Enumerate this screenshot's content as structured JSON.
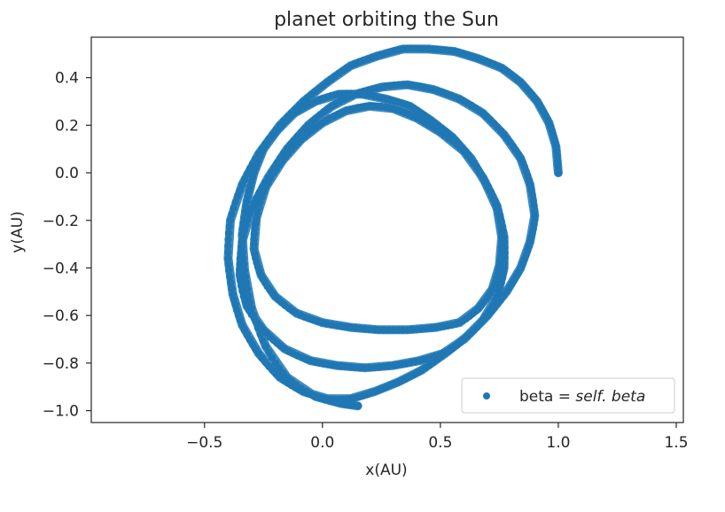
{
  "chart_data": {
    "type": "scatter",
    "title": "planet orbiting the Sun",
    "xlabel": "x(AU)",
    "ylabel": "y(AU)",
    "xlim": [
      -0.98,
      1.53
    ],
    "ylim": [
      -1.05,
      0.57
    ],
    "xticks": [
      -0.5,
      0.0,
      0.5,
      1.0,
      1.5
    ],
    "xtick_labels": [
      "−0.5",
      "0.0",
      "0.5",
      "1.0",
      "1.5"
    ],
    "yticks": [
      0.4,
      0.2,
      0.0,
      -0.2,
      -0.4,
      -0.6,
      -0.8,
      -1.0
    ],
    "ytick_labels": [
      "0.4",
      "0.2",
      "0.0",
      "−0.2",
      "−0.4",
      "−0.6",
      "−0.8",
      "−1.0"
    ],
    "grid": false,
    "legend": {
      "position": "lower-right",
      "label_prefix": "beta = ",
      "label_italic": "self. beta"
    },
    "colors": {
      "series": "#1f77b4",
      "axes": "#262626"
    },
    "series": [
      {
        "marker": "circle",
        "points": [
          [
            1.0,
            0.0
          ],
          [
            0.99,
            0.11
          ],
          [
            0.96,
            0.21
          ],
          [
            0.91,
            0.3
          ],
          [
            0.84,
            0.38
          ],
          [
            0.76,
            0.44
          ],
          [
            0.66,
            0.48
          ],
          [
            0.56,
            0.51
          ],
          [
            0.45,
            0.52
          ],
          [
            0.34,
            0.52
          ],
          [
            0.23,
            0.49
          ],
          [
            0.12,
            0.45
          ],
          [
            0.02,
            0.38
          ],
          [
            -0.08,
            0.3
          ],
          [
            -0.18,
            0.2
          ],
          [
            -0.27,
            0.08
          ],
          [
            -0.34,
            -0.05
          ],
          [
            -0.39,
            -0.2
          ],
          [
            -0.4,
            -0.36
          ],
          [
            -0.38,
            -0.51
          ],
          [
            -0.34,
            -0.64
          ],
          [
            -0.27,
            -0.76
          ],
          [
            -0.18,
            -0.86
          ],
          [
            -0.08,
            -0.92
          ],
          [
            0.02,
            -0.95
          ],
          [
            0.12,
            -0.95
          ],
          [
            0.22,
            -0.92
          ],
          [
            0.32,
            -0.88
          ],
          [
            0.42,
            -0.83
          ],
          [
            0.52,
            -0.76
          ],
          [
            0.61,
            -0.69
          ],
          [
            0.7,
            -0.6
          ],
          [
            0.78,
            -0.5
          ],
          [
            0.84,
            -0.4
          ],
          [
            0.88,
            -0.29
          ],
          [
            0.9,
            -0.18
          ],
          [
            0.88,
            -0.05
          ],
          [
            0.84,
            0.06
          ],
          [
            0.77,
            0.16
          ],
          [
            0.68,
            0.25
          ],
          [
            0.58,
            0.31
          ],
          [
            0.47,
            0.35
          ],
          [
            0.36,
            0.37
          ],
          [
            0.25,
            0.36
          ],
          [
            0.14,
            0.33
          ],
          [
            0.04,
            0.28
          ],
          [
            -0.06,
            0.2
          ],
          [
            -0.15,
            0.1
          ],
          [
            -0.23,
            -0.02
          ],
          [
            -0.3,
            -0.15
          ],
          [
            -0.34,
            -0.29
          ],
          [
            -0.35,
            -0.43
          ],
          [
            -0.32,
            -0.56
          ],
          [
            -0.25,
            -0.66
          ],
          [
            -0.16,
            -0.74
          ],
          [
            -0.05,
            -0.79
          ],
          [
            0.06,
            -0.81
          ],
          [
            0.18,
            -0.82
          ],
          [
            0.3,
            -0.81
          ],
          [
            0.41,
            -0.79
          ],
          [
            0.51,
            -0.76
          ],
          [
            0.6,
            -0.7
          ],
          [
            0.68,
            -0.62
          ],
          [
            0.74,
            -0.52
          ],
          [
            0.77,
            -0.4
          ],
          [
            0.77,
            -0.27
          ],
          [
            0.74,
            -0.14
          ],
          [
            0.68,
            -0.02
          ],
          [
            0.6,
            0.09
          ],
          [
            0.5,
            0.17
          ],
          [
            0.4,
            0.23
          ],
          [
            0.3,
            0.27
          ],
          [
            0.2,
            0.28
          ],
          [
            0.1,
            0.26
          ],
          [
            0.0,
            0.21
          ],
          [
            -0.09,
            0.14
          ],
          [
            -0.17,
            0.05
          ],
          [
            -0.24,
            -0.06
          ],
          [
            -0.28,
            -0.19
          ],
          [
            -0.29,
            -0.32
          ],
          [
            -0.26,
            -0.43
          ],
          [
            -0.2,
            -0.52
          ],
          [
            -0.11,
            -0.59
          ],
          [
            0.0,
            -0.63
          ],
          [
            0.12,
            -0.65
          ],
          [
            0.24,
            -0.66
          ],
          [
            0.36,
            -0.66
          ],
          [
            0.48,
            -0.65
          ],
          [
            0.58,
            -0.63
          ],
          [
            0.66,
            -0.57
          ],
          [
            0.72,
            -0.49
          ],
          [
            0.75,
            -0.39
          ],
          [
            0.76,
            -0.27
          ],
          [
            0.74,
            -0.15
          ],
          [
            0.69,
            -0.04
          ],
          [
            0.63,
            0.06
          ],
          [
            0.55,
            0.15
          ],
          [
            0.46,
            0.22
          ],
          [
            0.37,
            0.28
          ],
          [
            0.27,
            0.31
          ],
          [
            0.17,
            0.33
          ],
          [
            0.07,
            0.33
          ],
          [
            -0.03,
            0.3
          ],
          [
            -0.12,
            0.25
          ],
          [
            -0.19,
            0.18
          ],
          [
            -0.25,
            0.1
          ],
          [
            -0.29,
            0.0
          ],
          [
            -0.32,
            -0.12
          ],
          [
            -0.34,
            -0.26
          ],
          [
            -0.33,
            -0.41
          ],
          [
            -0.3,
            -0.57
          ],
          [
            -0.24,
            -0.73
          ],
          [
            -0.15,
            -0.86
          ],
          [
            -0.03,
            -0.94
          ],
          [
            0.08,
            -0.97
          ],
          [
            0.15,
            -0.98
          ]
        ]
      }
    ]
  }
}
